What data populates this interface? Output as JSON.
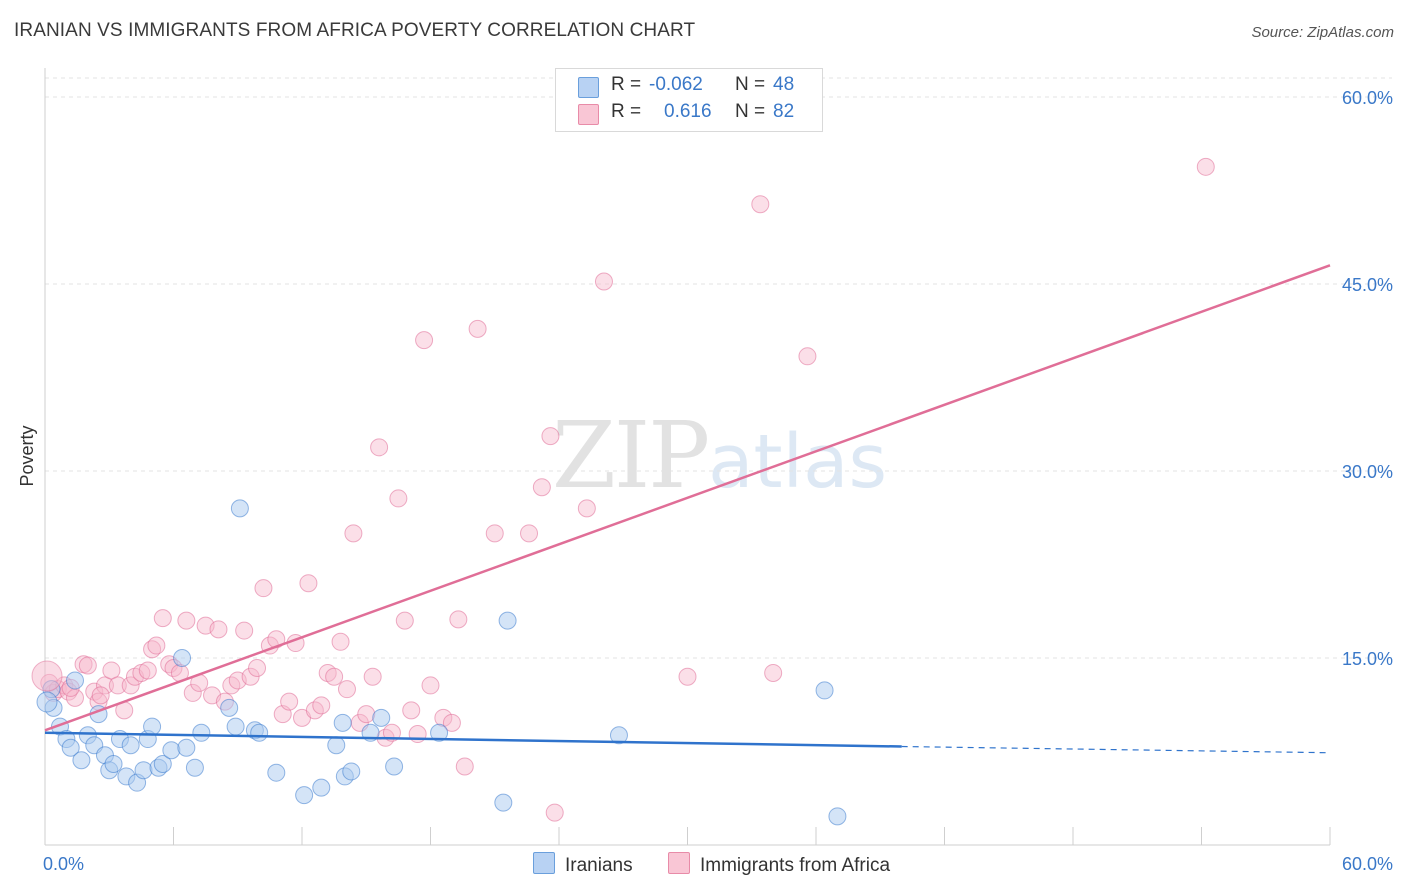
{
  "title": "IRANIAN VS IMMIGRANTS FROM AFRICA POVERTY CORRELATION CHART",
  "source": "Source: ZipAtlas.com",
  "watermark": {
    "zip": "ZIP",
    "atlas": "atlas"
  },
  "legend": {
    "rows": [
      {
        "r_label": "R =",
        "r_value": "-0.062",
        "n_label": "N =",
        "n_value": "48",
        "color": "#b8d2f3",
        "border": "#6a9fdc"
      },
      {
        "r_label": "R =",
        "r_value": "0.616",
        "n_label": "N =",
        "n_value": "82",
        "color": "#f9c6d5",
        "border": "#e88ba8"
      }
    ]
  },
  "bottom_legend": [
    {
      "label": "Iranians",
      "color": "#b8d2f3",
      "border": "#6a9fdc"
    },
    {
      "label": "Immigrants from Africa",
      "color": "#f9c6d5",
      "border": "#e88ba8"
    }
  ],
  "colors": {
    "blue_fill": "#a9c9f0",
    "blue_line": "#2f73cc",
    "pink_fill": "#f6b8cb",
    "pink_line": "#e06e97",
    "axis_text": "#3a78c8"
  },
  "chart_data": {
    "type": "scatter",
    "title": "IRANIAN VS IMMIGRANTS FROM AFRICA POVERTY CORRELATION CHART",
    "xlabel": "",
    "ylabel": "Poverty",
    "xlim": [
      0,
      60
    ],
    "ylim": [
      0,
      60
    ],
    "x_tick_labels": [
      "0.0%",
      "60.0%"
    ],
    "y_ticks": [
      15,
      30,
      45,
      60
    ],
    "y_tick_labels": [
      "15.0%",
      "30.0%",
      "45.0%",
      "60.0%"
    ],
    "grid": "horizontal dashed",
    "legend_position": "top-center",
    "series": [
      {
        "name": "Iranians",
        "r": -0.062,
        "n": 48,
        "trend": {
          "x0": 0,
          "y0": 9.0,
          "x1": 40,
          "y1": 7.9,
          "dashed_to": 60,
          "dashed_y": 7.4
        },
        "points": [
          [
            0.3,
            12.5
          ],
          [
            0.4,
            11.0
          ],
          [
            0.7,
            9.5
          ],
          [
            1.0,
            8.5
          ],
          [
            1.2,
            7.8
          ],
          [
            1.4,
            13.2
          ],
          [
            1.7,
            6.8
          ],
          [
            2.0,
            8.8
          ],
          [
            2.3,
            8.0
          ],
          [
            2.5,
            10.5
          ],
          [
            2.8,
            7.2
          ],
          [
            3.0,
            6.0
          ],
          [
            3.2,
            6.5
          ],
          [
            3.5,
            8.5
          ],
          [
            3.8,
            5.5
          ],
          [
            4.0,
            8.0
          ],
          [
            4.3,
            5.0
          ],
          [
            4.6,
            6.0
          ],
          [
            4.8,
            8.5
          ],
          [
            5.0,
            9.5
          ],
          [
            5.3,
            6.2
          ],
          [
            5.5,
            6.5
          ],
          [
            5.9,
            7.6
          ],
          [
            6.4,
            15.0
          ],
          [
            6.6,
            7.8
          ],
          [
            7.0,
            6.2
          ],
          [
            7.3,
            9.0
          ],
          [
            8.6,
            11.0
          ],
          [
            8.9,
            9.5
          ],
          [
            9.1,
            27.0
          ],
          [
            9.8,
            9.2
          ],
          [
            10.0,
            9.0
          ],
          [
            10.8,
            5.8
          ],
          [
            12.1,
            4.0
          ],
          [
            12.9,
            4.6
          ],
          [
            13.6,
            8.0
          ],
          [
            13.9,
            9.8
          ],
          [
            14.0,
            5.5
          ],
          [
            14.3,
            5.9
          ],
          [
            15.2,
            9.0
          ],
          [
            15.7,
            10.2
          ],
          [
            16.3,
            6.3
          ],
          [
            18.4,
            9.0
          ],
          [
            21.4,
            3.4
          ],
          [
            21.6,
            18.0
          ],
          [
            26.8,
            8.8
          ],
          [
            36.4,
            12.4
          ],
          [
            37.0,
            2.3
          ]
        ]
      },
      {
        "name": "Immigrants from Africa",
        "r": 0.616,
        "n": 82,
        "trend": {
          "x0": 0,
          "y0": 9.2,
          "x1": 60,
          "y1": 46.5
        },
        "points": [
          [
            0.2,
            13.0
          ],
          [
            0.4,
            12.2
          ],
          [
            0.6,
            12.5
          ],
          [
            0.9,
            12.8
          ],
          [
            1.1,
            12.3
          ],
          [
            1.4,
            11.8
          ],
          [
            1.8,
            14.5
          ],
          [
            2.0,
            14.4
          ],
          [
            2.3,
            12.3
          ],
          [
            2.5,
            11.5
          ],
          [
            2.8,
            12.8
          ],
          [
            3.1,
            14.0
          ],
          [
            3.4,
            12.8
          ],
          [
            3.7,
            10.8
          ],
          [
            4.0,
            12.8
          ],
          [
            4.2,
            13.5
          ],
          [
            4.5,
            13.8
          ],
          [
            4.8,
            14.0
          ],
          [
            5.0,
            15.7
          ],
          [
            5.2,
            16.0
          ],
          [
            5.5,
            18.2
          ],
          [
            5.8,
            14.5
          ],
          [
            6.0,
            14.2
          ],
          [
            6.3,
            13.8
          ],
          [
            6.6,
            18.0
          ],
          [
            6.9,
            12.2
          ],
          [
            7.2,
            13.0
          ],
          [
            7.5,
            17.6
          ],
          [
            7.8,
            12.0
          ],
          [
            8.1,
            17.3
          ],
          [
            8.4,
            11.5
          ],
          [
            8.7,
            12.8
          ],
          [
            9.0,
            13.2
          ],
          [
            9.3,
            17.2
          ],
          [
            9.6,
            13.5
          ],
          [
            9.9,
            14.2
          ],
          [
            10.2,
            20.6
          ],
          [
            10.5,
            16.0
          ],
          [
            10.8,
            16.5
          ],
          [
            11.1,
            10.5
          ],
          [
            11.4,
            11.5
          ],
          [
            11.7,
            16.2
          ],
          [
            12.0,
            10.2
          ],
          [
            12.3,
            21.0
          ],
          [
            12.6,
            10.8
          ],
          [
            12.9,
            11.2
          ],
          [
            13.2,
            13.8
          ],
          [
            13.5,
            13.5
          ],
          [
            13.8,
            16.3
          ],
          [
            14.1,
            12.5
          ],
          [
            14.4,
            25.0
          ],
          [
            14.7,
            9.8
          ],
          [
            15.0,
            10.5
          ],
          [
            15.3,
            13.5
          ],
          [
            15.6,
            31.9
          ],
          [
            15.9,
            8.6
          ],
          [
            16.2,
            9.0
          ],
          [
            16.5,
            27.8
          ],
          [
            16.8,
            18.0
          ],
          [
            17.1,
            10.8
          ],
          [
            17.4,
            8.9
          ],
          [
            17.7,
            40.5
          ],
          [
            18.0,
            12.8
          ],
          [
            18.6,
            10.2
          ],
          [
            19.0,
            9.8
          ],
          [
            19.3,
            18.1
          ],
          [
            19.6,
            6.3
          ],
          [
            20.2,
            41.4
          ],
          [
            21.0,
            25.0
          ],
          [
            22.6,
            25.0
          ],
          [
            23.2,
            28.7
          ],
          [
            23.6,
            32.8
          ],
          [
            23.8,
            2.6
          ],
          [
            25.3,
            27.0
          ],
          [
            26.1,
            45.2
          ],
          [
            30.0,
            13.5
          ],
          [
            33.4,
            51.4
          ],
          [
            34.0,
            13.8
          ],
          [
            35.6,
            39.2
          ],
          [
            54.2,
            54.4
          ],
          [
            1.2,
            12.6
          ],
          [
            2.6,
            12.0
          ]
        ]
      }
    ]
  }
}
